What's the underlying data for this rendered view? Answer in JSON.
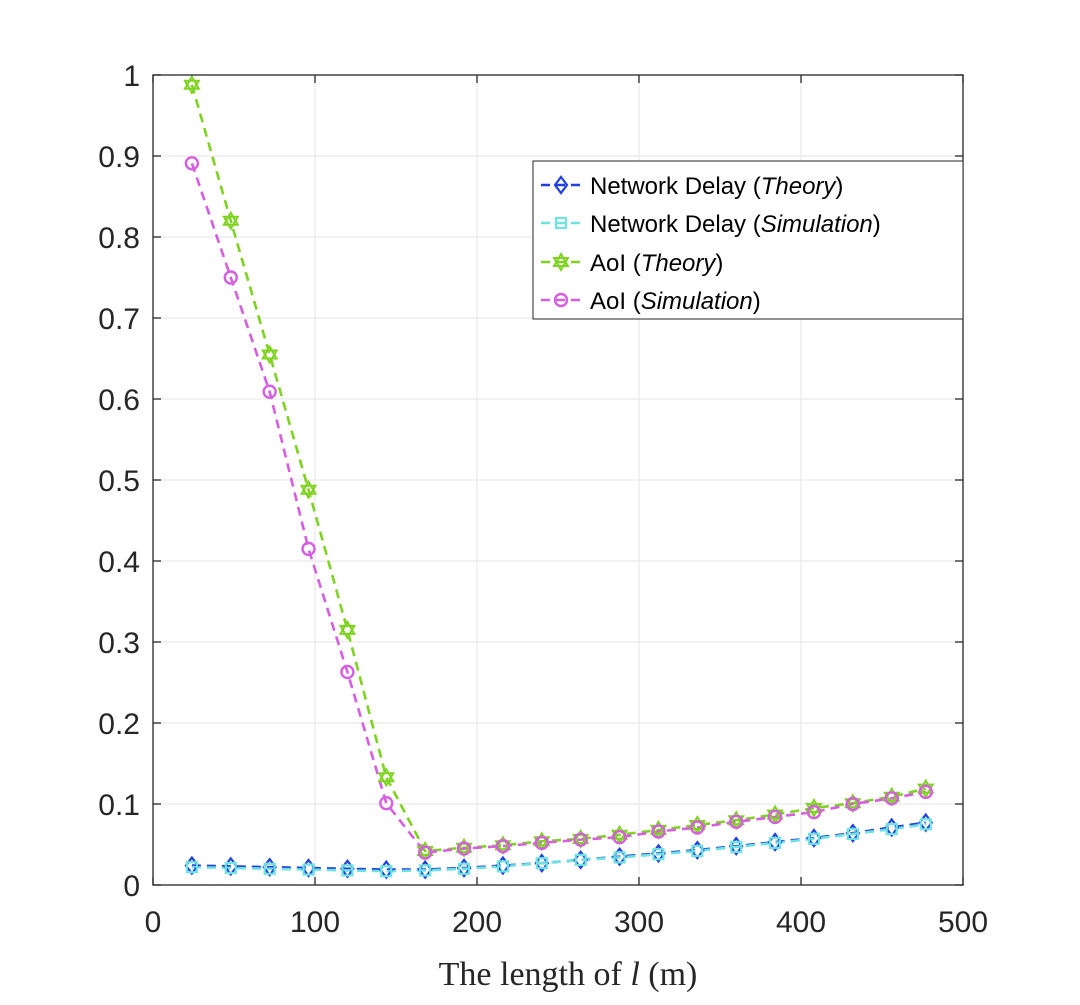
{
  "chart_data": {
    "type": "line",
    "title": "",
    "xlabel": {
      "prefix": "The length of ",
      "var": "l",
      "suffix": " (m)"
    },
    "ylabel": "",
    "xlim": [
      0,
      500
    ],
    "ylim": [
      0,
      1
    ],
    "x_ticks": [
      0,
      100,
      200,
      300,
      400,
      500
    ],
    "y_ticks": [
      0,
      0.1,
      0.2,
      0.3,
      0.4,
      0.5,
      0.6,
      0.7,
      0.8,
      0.9,
      1
    ],
    "x_tick_labels": [
      "0",
      "100",
      "200",
      "300",
      "400",
      "500"
    ],
    "y_tick_labels": [
      "0",
      "0.1",
      "0.2",
      "0.3",
      "0.4",
      "0.5",
      "0.6",
      "0.7",
      "0.8",
      "0.9",
      "1"
    ],
    "grid": true,
    "legend_position": "top-right",
    "x": [
      24,
      48,
      72,
      96,
      120,
      144,
      168,
      192,
      216,
      240,
      264,
      288,
      312,
      336,
      360,
      384,
      408,
      432,
      456,
      477
    ],
    "series": [
      {
        "name": "Network Delay (Theory)",
        "name_main": "Network Delay (",
        "name_italic": "Theory",
        "name_end": ")",
        "color": "#1f3fe0",
        "marker": "diamond",
        "values": [
          0.024,
          0.023,
          0.022,
          0.021,
          0.02,
          0.019,
          0.019,
          0.021,
          0.024,
          0.027,
          0.031,
          0.035,
          0.039,
          0.043,
          0.048,
          0.053,
          0.058,
          0.064,
          0.071,
          0.077
        ]
      },
      {
        "name": "Network Delay (Simulation)",
        "name_main": "Network Delay (",
        "name_italic": "Simulation",
        "name_end": ")",
        "color": "#6fe3e0",
        "marker": "square",
        "values": [
          0.022,
          0.021,
          0.02,
          0.019,
          0.018,
          0.017,
          0.018,
          0.02,
          0.023,
          0.027,
          0.031,
          0.034,
          0.038,
          0.042,
          0.047,
          0.052,
          0.057,
          0.063,
          0.069,
          0.075
        ]
      },
      {
        "name": "AoI (Theory)",
        "name_main": "AoI (",
        "name_italic": "Theory",
        "name_end": ")",
        "color": "#7ed321",
        "marker": "hexagram",
        "values": [
          0.988,
          0.82,
          0.655,
          0.488,
          0.315,
          0.133,
          0.042,
          0.046,
          0.049,
          0.054,
          0.057,
          0.062,
          0.068,
          0.074,
          0.08,
          0.087,
          0.095,
          0.101,
          0.109,
          0.119
        ]
      },
      {
        "name": "AoI (Simulation)",
        "name_main": "AoI (",
        "name_italic": "Simulation",
        "name_end": ")",
        "color": "#d65ee0",
        "marker": "circle",
        "values": [
          0.891,
          0.75,
          0.609,
          0.415,
          0.263,
          0.101,
          0.04,
          0.045,
          0.048,
          0.052,
          0.056,
          0.059,
          0.066,
          0.071,
          0.078,
          0.084,
          0.09,
          0.1,
          0.107,
          0.115
        ]
      }
    ]
  }
}
